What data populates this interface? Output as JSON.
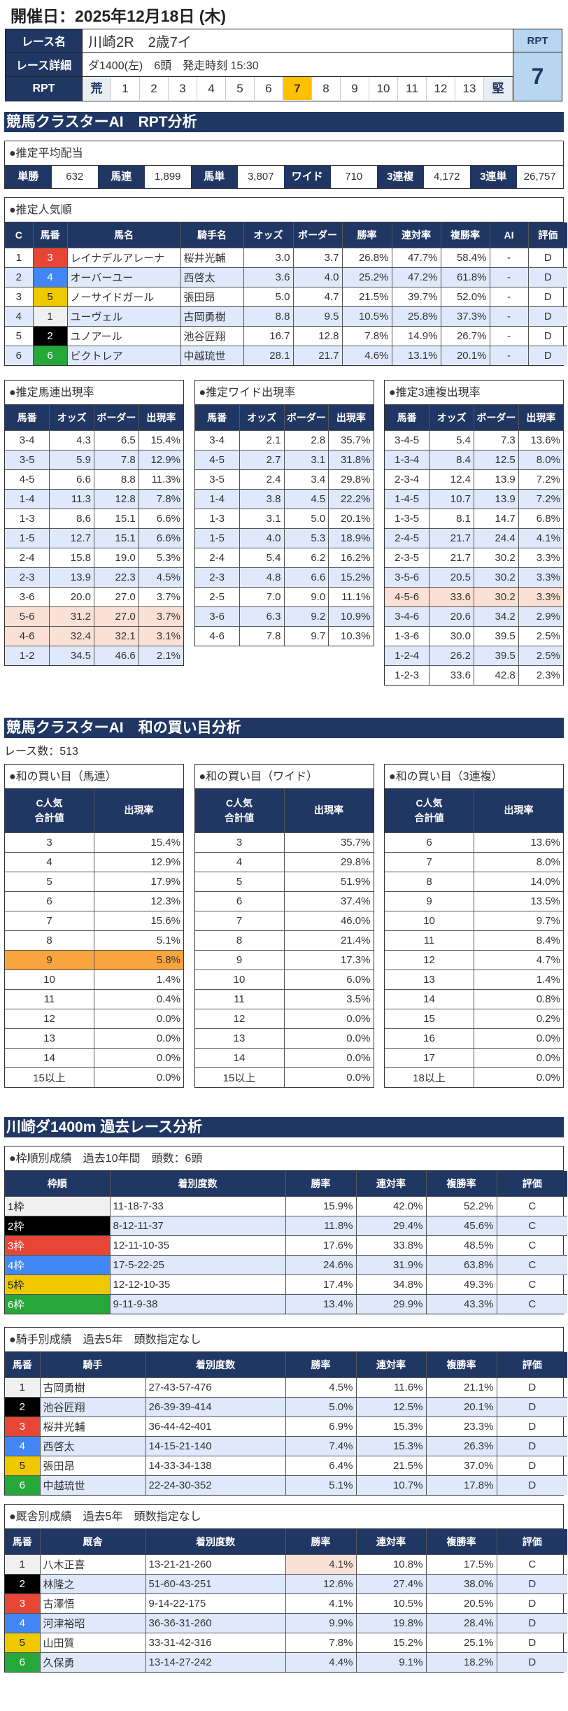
{
  "header": {
    "date": "開催日：2025年12月18日 (木)",
    "race_name_label": "レース名",
    "race_name": "川崎2R　2歳7イ",
    "detail_label": "レース詳細",
    "detail": "ダ1400(左)　6頭　発走時刻 15:30",
    "rpt_label": "RPT",
    "rpt_scale": [
      "荒",
      "1",
      "2",
      "3",
      "4",
      "5",
      "6",
      "7",
      "8",
      "9",
      "10",
      "11",
      "12",
      "13",
      "堅"
    ],
    "rpt_selected": "7",
    "rpt_box_label": "RPT",
    "rpt_value": "7"
  },
  "colors": {
    "navy": "#213763",
    "selected": "#ffc000",
    "stripe": "#dfe9fb",
    "highlight": "#fbe1d5",
    "orange": "#f9a53f"
  },
  "rpt": {
    "title": "競馬クラスターAI　RPT分析",
    "payout": {
      "title": "●推定平均配当",
      "items": [
        {
          "label": "単勝",
          "value": "632"
        },
        {
          "label": "馬連",
          "value": "1,899"
        },
        {
          "label": "馬単",
          "value": "3,807"
        },
        {
          "label": "ワイド",
          "value": "710"
        },
        {
          "label": "3連複",
          "value": "4,172"
        },
        {
          "label": "3連単",
          "value": "26,757"
        }
      ]
    },
    "popularity": {
      "title": "●推定人気順",
      "headers": [
        "C",
        "馬番",
        "馬名",
        "騎手名",
        "オッズ",
        "ボーダー",
        "勝率",
        "連対率",
        "複勝率",
        "AI",
        "評価"
      ],
      "rows": [
        [
          "1",
          "3",
          "レイナデルアレーナ",
          "桜井光輔",
          "3.0",
          "3.7",
          "26.8%",
          "47.7%",
          "58.4%",
          "-",
          "D"
        ],
        [
          "2",
          "4",
          "オーバーユー",
          "西啓太",
          "3.6",
          "4.0",
          "25.2%",
          "47.2%",
          "61.8%",
          "-",
          "D"
        ],
        [
          "3",
          "5",
          "ノーサイドガール",
          "張田昂",
          "5.0",
          "4.7",
          "21.5%",
          "39.7%",
          "52.0%",
          "-",
          "D"
        ],
        [
          "4",
          "1",
          "ユーヴェル",
          "古岡勇樹",
          "8.8",
          "9.5",
          "10.5%",
          "25.8%",
          "37.3%",
          "-",
          "D"
        ],
        [
          "5",
          "2",
          "ユノアール",
          "池谷匠翔",
          "16.7",
          "12.8",
          "7.8%",
          "14.9%",
          "26.7%",
          "-",
          "D"
        ],
        [
          "6",
          "6",
          "ビクトレア",
          "中越琉世",
          "28.1",
          "21.7",
          "4.6%",
          "13.1%",
          "20.1%",
          "-",
          "D"
        ]
      ]
    },
    "umaren": {
      "title": "●推定馬連出現率",
      "headers": [
        "馬番",
        "オッズ",
        "ボーダー",
        "出現率"
      ],
      "rows": [
        [
          "3-4",
          "4.3",
          "6.5",
          "15.4%"
        ],
        [
          "3-5",
          "5.9",
          "7.8",
          "12.9%"
        ],
        [
          "4-5",
          "6.6",
          "8.8",
          "11.3%"
        ],
        [
          "1-4",
          "11.3",
          "12.8",
          "7.8%"
        ],
        [
          "1-3",
          "8.6",
          "15.1",
          "6.6%"
        ],
        [
          "1-5",
          "12.7",
          "15.1",
          "6.6%"
        ],
        [
          "2-4",
          "15.8",
          "19.0",
          "5.3%"
        ],
        [
          "2-3",
          "13.9",
          "22.3",
          "4.5%"
        ],
        [
          "3-6",
          "20.0",
          "27.0",
          "3.7%"
        ],
        [
          "5-6",
          "31.2",
          "27.0",
          "3.7%"
        ],
        [
          "4-6",
          "32.4",
          "32.1",
          "3.1%"
        ],
        [
          "1-2",
          "34.5",
          "46.6",
          "2.1%"
        ]
      ],
      "highlight_rows": [
        9,
        10
      ]
    },
    "wide": {
      "title": "●推定ワイド出現率",
      "headers": [
        "馬番",
        "オッズ",
        "ボーダー",
        "出現率"
      ],
      "rows": [
        [
          "3-4",
          "2.1",
          "2.8",
          "35.7%"
        ],
        [
          "4-5",
          "2.7",
          "3.1",
          "31.8%"
        ],
        [
          "3-5",
          "2.4",
          "3.4",
          "29.8%"
        ],
        [
          "1-4",
          "3.8",
          "4.5",
          "22.2%"
        ],
        [
          "1-3",
          "3.1",
          "5.0",
          "20.1%"
        ],
        [
          "1-5",
          "4.0",
          "5.3",
          "18.9%"
        ],
        [
          "2-4",
          "5.4",
          "6.2",
          "16.2%"
        ],
        [
          "2-3",
          "4.8",
          "6.6",
          "15.2%"
        ],
        [
          "2-5",
          "7.0",
          "9.0",
          "11.1%"
        ],
        [
          "3-6",
          "6.3",
          "9.2",
          "10.9%"
        ],
        [
          "4-6",
          "7.8",
          "9.7",
          "10.3%"
        ]
      ],
      "highlight_rows": []
    },
    "sanrenpuku": {
      "title": "●推定3連複出現率",
      "headers": [
        "馬番",
        "オッズ",
        "ボーダー",
        "出現率"
      ],
      "rows": [
        [
          "3-4-5",
          "5.4",
          "7.3",
          "13.6%"
        ],
        [
          "1-3-4",
          "8.4",
          "12.5",
          "8.0%"
        ],
        [
          "2-3-4",
          "12.4",
          "13.9",
          "7.2%"
        ],
        [
          "1-4-5",
          "10.7",
          "13.9",
          "7.2%"
        ],
        [
          "1-3-5",
          "8.1",
          "14.7",
          "6.8%"
        ],
        [
          "2-4-5",
          "21.7",
          "24.4",
          "4.1%"
        ],
        [
          "2-3-5",
          "21.7",
          "30.2",
          "3.3%"
        ],
        [
          "3-5-6",
          "20.5",
          "30.2",
          "3.3%"
        ],
        [
          "4-5-6",
          "33.6",
          "30.2",
          "3.3%"
        ],
        [
          "3-4-6",
          "20.6",
          "34.2",
          "2.9%"
        ],
        [
          "1-3-6",
          "30.0",
          "39.5",
          "2.5%"
        ],
        [
          "1-2-4",
          "26.2",
          "39.5",
          "2.5%"
        ],
        [
          "1-2-3",
          "33.6",
          "42.8",
          "2.3%"
        ]
      ],
      "highlight_rows": [
        8
      ]
    }
  },
  "sum": {
    "title": "競馬クラスターAI　和の買い目分析",
    "race_count": "レース数：513",
    "umaren": {
      "title": "●和の買い目（馬連）",
      "headers": [
        "C人気\n合計値",
        "出現率"
      ],
      "rows": [
        [
          "3",
          "15.4%"
        ],
        [
          "4",
          "12.9%"
        ],
        [
          "5",
          "17.9%"
        ],
        [
          "6",
          "12.3%"
        ],
        [
          "7",
          "15.6%"
        ],
        [
          "8",
          "5.1%"
        ],
        [
          "9",
          "5.8%"
        ],
        [
          "10",
          "1.4%"
        ],
        [
          "11",
          "0.4%"
        ],
        [
          "12",
          "0.0%"
        ],
        [
          "13",
          "0.0%"
        ],
        [
          "14",
          "0.0%"
        ],
        [
          "15以上",
          "0.0%"
        ]
      ],
      "orange_rows": [
        6
      ]
    },
    "wide": {
      "title": "●和の買い目（ワイド）",
      "headers": [
        "C人気\n合計値",
        "出現率"
      ],
      "rows": [
        [
          "3",
          "35.7%"
        ],
        [
          "4",
          "29.8%"
        ],
        [
          "5",
          "51.9%"
        ],
        [
          "6",
          "37.4%"
        ],
        [
          "7",
          "46.0%"
        ],
        [
          "8",
          "21.4%"
        ],
        [
          "9",
          "17.3%"
        ],
        [
          "10",
          "6.0%"
        ],
        [
          "11",
          "3.5%"
        ],
        [
          "12",
          "0.0%"
        ],
        [
          "13",
          "0.0%"
        ],
        [
          "14",
          "0.0%"
        ],
        [
          "15以上",
          "0.0%"
        ]
      ],
      "orange_rows": []
    },
    "sanrenpuku": {
      "title": "●和の買い目（3連複）",
      "headers": [
        "C人気\n合計値",
        "出現率"
      ],
      "rows": [
        [
          "6",
          "13.6%"
        ],
        [
          "7",
          "8.0%"
        ],
        [
          "8",
          "14.0%"
        ],
        [
          "9",
          "13.5%"
        ],
        [
          "10",
          "9.7%"
        ],
        [
          "11",
          "8.4%"
        ],
        [
          "12",
          "4.7%"
        ],
        [
          "13",
          "1.4%"
        ],
        [
          "14",
          "0.8%"
        ],
        [
          "15",
          "0.2%"
        ],
        [
          "16",
          "0.0%"
        ],
        [
          "17",
          "0.0%"
        ],
        [
          "18以上",
          "0.0%"
        ]
      ],
      "orange_rows": []
    }
  },
  "past": {
    "title": "川崎ダ1400m 過去レース分析",
    "waku": {
      "title": "●枠順別成績　過去10年間　頭数：6頭",
      "headers": [
        "枠順",
        "着別度数",
        "勝率",
        "連対率",
        "複勝率",
        "評価"
      ],
      "rows": [
        [
          "1枠",
          "11-18-7-33",
          "15.9%",
          "42.0%",
          "52.2%",
          "C"
        ],
        [
          "2枠",
          "8-12-11-37",
          "11.8%",
          "29.4%",
          "45.6%",
          "C"
        ],
        [
          "3枠",
          "12-11-10-35",
          "17.6%",
          "33.8%",
          "48.5%",
          "C"
        ],
        [
          "4枠",
          "17-5-22-25",
          "24.6%",
          "31.9%",
          "63.8%",
          "C"
        ],
        [
          "5枠",
          "12-12-10-35",
          "17.4%",
          "34.8%",
          "49.3%",
          "C"
        ],
        [
          "6枠",
          "9-11-9-38",
          "13.4%",
          "29.9%",
          "43.3%",
          "C"
        ]
      ]
    },
    "jockey": {
      "title": "●騎手別成績　過去5年　頭数指定なし",
      "headers": [
        "馬番",
        "騎手",
        "着別度数",
        "勝率",
        "連対率",
        "複勝率",
        "評価"
      ],
      "rows": [
        [
          "1",
          "古岡勇樹",
          "27-43-57-476",
          "4.5%",
          "11.6%",
          "21.1%",
          "D"
        ],
        [
          "2",
          "池谷匠翔",
          "26-39-39-414",
          "5.0%",
          "12.5%",
          "20.1%",
          "D"
        ],
        [
          "3",
          "桜井光輔",
          "36-44-42-401",
          "6.9%",
          "15.3%",
          "23.3%",
          "D"
        ],
        [
          "4",
          "西啓太",
          "14-15-21-140",
          "7.4%",
          "15.3%",
          "26.3%",
          "D"
        ],
        [
          "5",
          "張田昂",
          "14-33-34-138",
          "6.4%",
          "21.5%",
          "37.0%",
          "D"
        ],
        [
          "6",
          "中越琉世",
          "22-24-30-352",
          "5.1%",
          "10.7%",
          "17.8%",
          "D"
        ]
      ]
    },
    "stable": {
      "title": "●厩舎別成績　過去5年　頭数指定なし",
      "headers": [
        "馬番",
        "厩舎",
        "着別度数",
        "勝率",
        "連対率",
        "複勝率",
        "評価"
      ],
      "rows": [
        [
          "1",
          "八木正喜",
          "13-21-21-260",
          "4.1%",
          "10.8%",
          "17.5%",
          "C"
        ],
        [
          "2",
          "林隆之",
          "51-60-43-251",
          "12.6%",
          "27.4%",
          "38.0%",
          "D"
        ],
        [
          "3",
          "古澤悟",
          "9-14-22-175",
          "4.1%",
          "10.5%",
          "20.5%",
          "D"
        ],
        [
          "4",
          "河津裕昭",
          "36-36-31-260",
          "9.9%",
          "19.8%",
          "28.4%",
          "D"
        ],
        [
          "5",
          "山田質",
          "33-31-42-316",
          "7.8%",
          "15.2%",
          "25.1%",
          "D"
        ],
        [
          "6",
          "久保勇",
          "13-14-27-242",
          "4.4%",
          "9.1%",
          "18.2%",
          "D"
        ]
      ],
      "highlight_cells": [
        [
          0,
          3
        ]
      ]
    }
  }
}
